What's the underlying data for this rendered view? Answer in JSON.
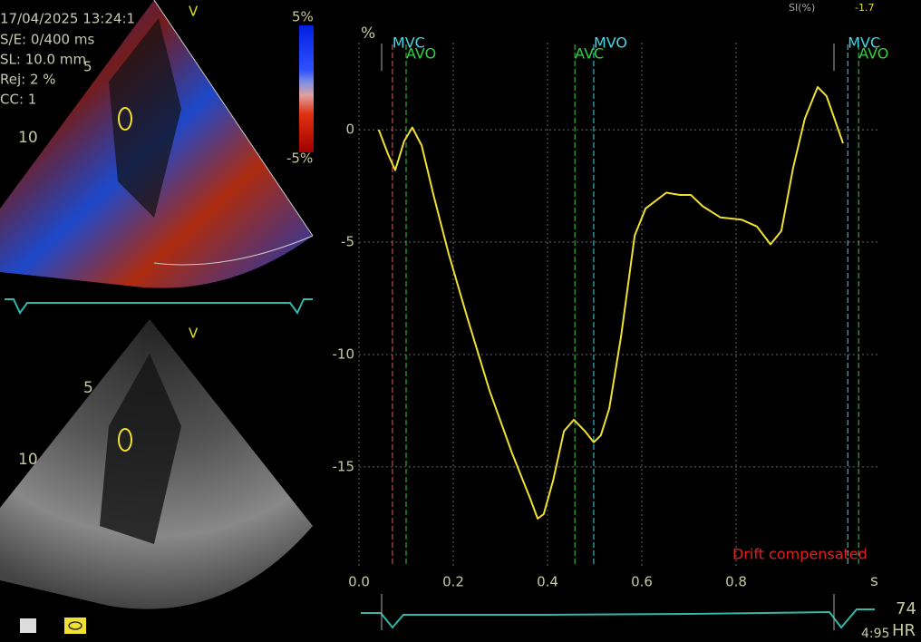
{
  "chart_data": {
    "type": "line",
    "color": "#f0e030",
    "x": [
      0.042,
      0.062,
      0.077,
      0.096,
      0.113,
      0.133,
      0.158,
      0.19,
      0.229,
      0.277,
      0.325,
      0.363,
      0.379,
      0.392,
      0.412,
      0.435,
      0.456,
      0.479,
      0.498,
      0.513,
      0.531,
      0.556,
      0.585,
      0.608,
      0.652,
      0.681,
      0.704,
      0.729,
      0.767,
      0.812,
      0.844,
      0.873,
      0.896,
      0.921,
      0.946,
      0.973,
      0.992,
      1.027
    ],
    "values": [
      0,
      -1.1,
      -1.8,
      -0.5,
      0.1,
      -0.7,
      -2.9,
      -5.5,
      -8.3,
      -11.6,
      -14.4,
      -16.4,
      -17.3,
      -17.1,
      -15.6,
      -13.4,
      -12.9,
      -13.4,
      -13.9,
      -13.6,
      -12.4,
      -9.2,
      -4.7,
      -3.5,
      -2.8,
      -2.9,
      -2.9,
      -3.4,
      -3.9,
      -4.0,
      -4.3,
      -5.1,
      -4.5,
      -1.7,
      0.5,
      1.9,
      1.5,
      -0.6
    ],
    "xlim": [
      0,
      1.1
    ],
    "ylim": [
      -19.4,
      4.2
    ],
    "xticks": [
      {
        "value": 0,
        "label": "0.0"
      },
      0.2,
      0.4,
      0.6,
      0.8
    ],
    "yticks": [
      0,
      -5,
      -10,
      -15
    ],
    "x_label": "s",
    "y_label": "%",
    "grid": true,
    "events": [
      {
        "label": "MVC",
        "x": 0.071,
        "color": "#40d8e8",
        "line_color": "#e06060"
      },
      {
        "label": "AVO",
        "x": 0.1,
        "color": "#30d040"
      },
      {
        "label": "AVC",
        "x": 0.458,
        "color": "#30d040"
      },
      {
        "label": "MVO",
        "x": 0.498,
        "color": "#40d8e8"
      },
      {
        "label": "MVC",
        "x": 1.037,
        "color": "#40d8e8"
      },
      {
        "label": "AVO",
        "x": 1.06,
        "color": "#30d040"
      }
    ],
    "annotation": "Drift compensated"
  },
  "readout": {
    "label": "SI(%)",
    "value": "-1.7"
  },
  "overlay": [
    "17/04/2025 13:24:1",
    "S/E:  0/400 ms",
    "SL: 10.0 mm",
    "Rej:  2 %",
    "CC: 1"
  ],
  "color_scale": {
    "max": "5%",
    "min": "-5%"
  },
  "top_image": {
    "orientation": "V",
    "depth_5": "5",
    "depth_10": "10"
  },
  "bottom_image": {
    "orientation": "V",
    "depth_5": "5",
    "depth_10": "10"
  },
  "heart_rate": {
    "value": "74",
    "label": "HR",
    "time": "4:95"
  }
}
